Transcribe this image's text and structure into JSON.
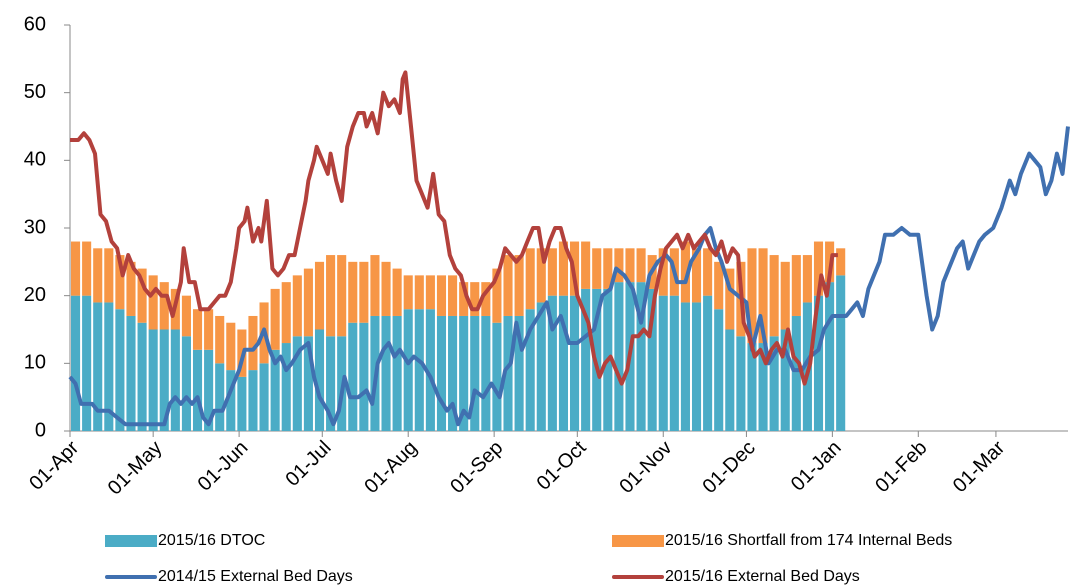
{
  "chart_data": {
    "type": "combo",
    "xlim": [
      0,
      360
    ],
    "xticks": [
      {
        "value": 0,
        "label": "01-Apr"
      },
      {
        "value": 30,
        "label": "01-May"
      },
      {
        "value": 61,
        "label": "01-Jun"
      },
      {
        "value": 91,
        "label": "01-Jul"
      },
      {
        "value": 122,
        "label": "01-Aug"
      },
      {
        "value": 153,
        "label": "01-Sep"
      },
      {
        "value": 183,
        "label": "01-Oct"
      },
      {
        "value": 214,
        "label": "01-Nov"
      },
      {
        "value": 244,
        "label": "01-Dec"
      },
      {
        "value": 275,
        "label": "01-Jan"
      },
      {
        "value": 306,
        "label": "01-Feb"
      },
      {
        "value": 334,
        "label": "01-Mar"
      }
    ],
    "ylim": [
      0,
      60
    ],
    "yticks": [
      0,
      10,
      20,
      30,
      40,
      50,
      60
    ],
    "legend": "bottom",
    "series": [
      {
        "name": "2015/16 DTOC",
        "type": "bar",
        "color": "#4bacc6",
        "x": [
          0,
          4,
          8,
          12,
          16,
          20,
          24,
          28,
          32,
          36,
          40,
          44,
          48,
          52,
          56,
          60,
          64,
          68,
          72,
          76,
          80,
          84,
          88,
          92,
          96,
          100,
          104,
          108,
          112,
          116,
          120,
          124,
          128,
          132,
          136,
          140,
          144,
          148,
          152,
          156,
          160,
          164,
          168,
          172,
          176,
          180,
          184,
          188,
          192,
          196,
          200,
          204,
          208,
          212,
          216,
          220,
          224,
          228,
          232,
          236,
          240,
          244,
          248,
          252,
          256,
          260,
          264,
          268,
          272,
          276
        ],
        "values": [
          20,
          20,
          19,
          19,
          18,
          17,
          16,
          15,
          15,
          15,
          14,
          12,
          12,
          10,
          9,
          8,
          9,
          10,
          12,
          13,
          14,
          14,
          15,
          14,
          14,
          16,
          16,
          17,
          17,
          17,
          18,
          18,
          18,
          17,
          17,
          17,
          17,
          17,
          16,
          17,
          17,
          18,
          19,
          20,
          20,
          20,
          21,
          21,
          21,
          22,
          22,
          22,
          21,
          20,
          20,
          19,
          19,
          20,
          18,
          15,
          14,
          13,
          13,
          14,
          15,
          17,
          19,
          20,
          22,
          23
        ]
      },
      {
        "name": "2015/16 Shortfall from 174 Internal Beds",
        "type": "bar",
        "color": "#f79646",
        "x": [
          0,
          4,
          8,
          12,
          16,
          20,
          24,
          28,
          32,
          36,
          40,
          44,
          48,
          52,
          56,
          60,
          64,
          68,
          72,
          76,
          80,
          84,
          88,
          92,
          96,
          100,
          104,
          108,
          112,
          116,
          120,
          124,
          128,
          132,
          136,
          140,
          144,
          148,
          152,
          156,
          160,
          164,
          168,
          172,
          176,
          180,
          184,
          188,
          192,
          196,
          200,
          204,
          208,
          212,
          216,
          220,
          224,
          228,
          232,
          236,
          240,
          244,
          248,
          252,
          256,
          260,
          264,
          268,
          272,
          276
        ],
        "values": [
          8,
          8,
          8,
          8,
          8,
          8,
          8,
          8,
          7,
          6,
          6,
          6,
          6,
          7,
          7,
          7,
          8,
          9,
          9,
          9,
          9,
          10,
          10,
          12,
          12,
          9,
          9,
          9,
          8,
          7,
          5,
          5,
          5,
          6,
          6,
          5,
          5,
          5,
          8,
          9,
          9,
          9,
          8,
          7,
          8,
          8,
          7,
          6,
          6,
          5,
          5,
          5,
          5,
          7,
          7,
          9,
          8,
          7,
          7,
          9,
          11,
          14,
          14,
          12,
          10,
          9,
          7,
          8,
          6,
          4
        ]
      },
      {
        "name": "2014/15 External Bed Days",
        "type": "line",
        "color": "#4070b0",
        "x": [
          0,
          2,
          4,
          8,
          10,
          14,
          17,
          20,
          32,
          34,
          36,
          38,
          40,
          42,
          44,
          46,
          48,
          50,
          52,
          55,
          58,
          61,
          63,
          66,
          68,
          70,
          72,
          74,
          76,
          78,
          80,
          83,
          86,
          88,
          90,
          93,
          95,
          97,
          99,
          101,
          104,
          107,
          109,
          111,
          113,
          115,
          117,
          119,
          122,
          124,
          127,
          130,
          133,
          136,
          138,
          140,
          142,
          144,
          146,
          149,
          152,
          155,
          157,
          159,
          161,
          163,
          166,
          169,
          172,
          174,
          177,
          180,
          183,
          186,
          189,
          192,
          195,
          197,
          200,
          203,
          206,
          209,
          212,
          215,
          217,
          219,
          222,
          224,
          227,
          229,
          231,
          233,
          235,
          238,
          241,
          244,
          246,
          249,
          252,
          255,
          258,
          261,
          264,
          267,
          270,
          272,
          275,
          280,
          282,
          284,
          286,
          288,
          290,
          292,
          294,
          297,
          300,
          303,
          306,
          309,
          311,
          313,
          315,
          317,
          320,
          322,
          324,
          326,
          328,
          330,
          333,
          336,
          339,
          341,
          343,
          346,
          348,
          350,
          352,
          354,
          356,
          358,
          360
        ],
        "values": [
          8,
          7,
          4,
          4,
          3,
          3,
          2,
          1,
          1,
          1,
          4,
          5,
          4,
          5,
          4,
          5,
          2,
          1,
          3,
          3,
          6,
          9,
          12,
          12,
          13,
          15,
          12,
          10,
          11,
          9,
          10,
          12,
          13,
          8,
          5,
          3,
          1,
          3,
          8,
          5,
          5,
          6,
          4,
          10,
          12,
          13,
          11,
          12,
          10,
          11,
          10,
          8,
          5,
          3,
          4,
          1,
          3,
          2,
          6,
          5,
          7,
          5,
          9,
          10,
          16,
          12,
          15,
          17,
          19,
          15,
          17,
          13,
          13,
          14,
          15,
          20,
          21,
          24,
          23,
          21,
          16,
          23,
          25,
          26,
          25,
          22,
          22,
          25,
          27,
          29,
          30,
          27,
          25,
          21,
          20,
          19,
          12,
          17,
          10,
          12,
          12,
          9,
          9,
          11,
          12,
          15,
          17,
          17,
          18,
          19,
          17,
          21,
          23,
          25,
          29,
          29,
          30,
          29,
          29,
          20,
          15,
          17,
          22,
          24,
          27,
          28,
          24,
          26,
          28,
          29,
          30,
          33,
          37,
          35,
          38,
          41,
          40,
          39,
          35,
          37,
          41,
          38,
          45
        ]
      },
      {
        "name": "2015/16 External Bed Days",
        "type": "line",
        "color": "#b3413c",
        "x": [
          0,
          3,
          5,
          7,
          9,
          11,
          13,
          15,
          17,
          19,
          21,
          23,
          25,
          27,
          29,
          31,
          33,
          35,
          37,
          40,
          41,
          43,
          45,
          47,
          50,
          52,
          54,
          56,
          58,
          60,
          61,
          63,
          64,
          66,
          68,
          69,
          71,
          73,
          75,
          77,
          79,
          81,
          83,
          85,
          86,
          88,
          89,
          91,
          93,
          94,
          96,
          98,
          100,
          102,
          104,
          106,
          107,
          109,
          111,
          113,
          115,
          117,
          119,
          120,
          121,
          123,
          125,
          127,
          129,
          131,
          133,
          135,
          137,
          139,
          141,
          143,
          145,
          147,
          149,
          151,
          153,
          155,
          157,
          159,
          161,
          163,
          165,
          167,
          169,
          171,
          173,
          175,
          177,
          179,
          181,
          183,
          185,
          187,
          189,
          191,
          193,
          195,
          197,
          199,
          201,
          203,
          205,
          207,
          209,
          211,
          213,
          215,
          217,
          219,
          221,
          223,
          225,
          227,
          229,
          231,
          233,
          235,
          237,
          239,
          241,
          243,
          245,
          247,
          249,
          251,
          253,
          255,
          257,
          259,
          261,
          263,
          265,
          267,
          269,
          271,
          273,
          275,
          277
        ],
        "values": [
          43,
          43,
          44,
          43,
          41,
          32,
          31,
          28,
          27,
          23,
          26,
          24,
          23,
          21,
          20,
          21,
          20,
          20,
          17,
          22,
          27,
          22,
          22,
          18,
          18,
          19,
          20,
          20,
          22,
          27,
          30,
          31,
          33,
          28,
          30,
          28,
          34,
          24,
          23,
          24,
          26,
          26,
          30,
          34,
          37,
          40,
          42,
          40,
          38,
          41,
          37,
          34,
          42,
          45,
          47,
          47,
          45,
          47,
          44,
          50,
          48,
          49,
          47,
          52,
          53,
          45,
          37,
          35,
          33,
          38,
          32,
          31,
          26,
          24,
          23,
          20,
          18,
          18,
          20,
          21,
          22,
          24,
          27,
          26,
          25,
          26,
          28,
          30,
          30,
          25,
          28,
          30,
          30,
          27,
          25,
          20,
          18,
          16,
          11,
          8,
          10,
          11,
          9,
          7,
          9,
          14,
          14,
          15,
          14,
          20,
          24,
          27,
          28,
          29,
          27,
          29,
          27,
          28,
          29,
          27,
          26,
          28,
          25,
          27,
          26,
          16,
          14,
          11,
          12,
          10,
          12,
          13,
          11,
          15,
          11,
          10,
          7,
          10,
          17,
          23,
          20,
          26,
          26
        ]
      }
    ]
  }
}
